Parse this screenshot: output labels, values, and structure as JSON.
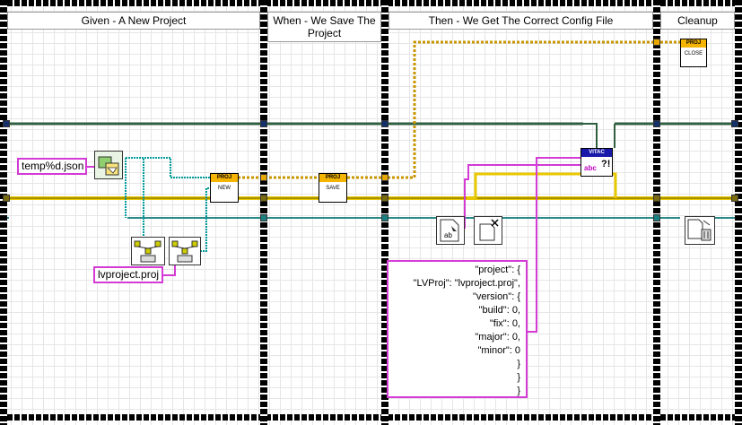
{
  "frames": [
    {
      "title": "Given - A New Project"
    },
    {
      "title": "When - We Save The Project"
    },
    {
      "title": "Then - We Get The Correct Config File"
    },
    {
      "title": "Cleanup"
    }
  ],
  "constants": {
    "path_pattern": "temp%d.json",
    "project_name": "lvproject.proj"
  },
  "subvis": {
    "new": {
      "header": "PROJ",
      "label": "NEW"
    },
    "save": {
      "header": "PROJ",
      "label": "SAVE"
    },
    "close": {
      "header": "PROJ",
      "label": "CLOSE"
    },
    "vitac": {
      "header": "VITAC",
      "label": "abc"
    }
  },
  "expected_json": [
    "\"project\": {",
    "\"LVProj\": \"lvproject.proj\",",
    "\"version\": {",
    "\"build\": 0,",
    "\"fix\": 0,",
    "\"major\": 0,",
    "\"minor\": 0",
    "}",
    "}",
    "}"
  ],
  "colors": {
    "error_wire": "#e8c800",
    "class_wire": "#b8860b",
    "refnum_wire": "#2a8a8a",
    "path_wire": "#009a9a",
    "string_wire": "#d43ad4",
    "dark_wire": "#2f5f3f",
    "proj_header": "#f5b400",
    "vitac_header": "#1a1aaa"
  }
}
